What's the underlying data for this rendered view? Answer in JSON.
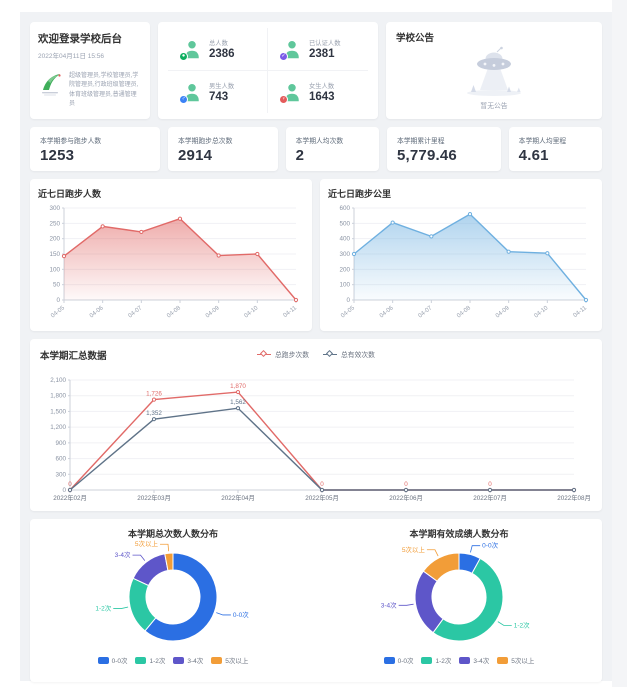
{
  "welcome": {
    "title": "欢迎登录学校后台",
    "datetime": "2022年04月11日 15:56",
    "roles": "超级管理员,学校管理员,学院管理员,行政班级管理员,体育班级管理员,普通管理员"
  },
  "overview": {
    "person_icon_color": "#5fc79b",
    "items": [
      {
        "label": "总人数",
        "value": "2386",
        "badge_color": "#0caf60",
        "badge_glyph": "●"
      },
      {
        "label": "已认证人数",
        "value": "2381",
        "badge_color": "#7b5be8",
        "badge_glyph": "✓"
      },
      {
        "label": "男生人数",
        "value": "743",
        "badge_color": "#3b82f6",
        "badge_glyph": "♂"
      },
      {
        "label": "女生人数",
        "value": "1643",
        "badge_color": "#e45b5b",
        "badge_glyph": "♀"
      }
    ]
  },
  "announcement": {
    "title": "学校公告",
    "empty_text": "暂无公告"
  },
  "stat_cards": [
    {
      "label": "本学期参与跑步人数",
      "value": "1253"
    },
    {
      "label": "本学期跑步总次数",
      "value": "2914"
    },
    {
      "label": "本学期人均次数",
      "value": "2"
    },
    {
      "label": "本学期累计里程",
      "value": "5,779.46"
    },
    {
      "label": "本学期人均里程",
      "value": "4.61"
    }
  ],
  "chart_data": [
    {
      "type": "area",
      "title": "近七日跑步人数",
      "x": [
        "04-05",
        "04-06",
        "04-07",
        "04-08",
        "04-09",
        "04-10",
        "04-11"
      ],
      "values": [
        143,
        240,
        222,
        265,
        145,
        150,
        0
      ],
      "ylim": [
        0,
        300
      ],
      "ytick_step": 50,
      "color": "#e16a68",
      "rotate_x_labels": true,
      "grid": true
    },
    {
      "type": "area",
      "title": "近七日跑步公里",
      "x": [
        "04-05",
        "04-06",
        "04-07",
        "04-08",
        "04-09",
        "04-10",
        "04-11"
      ],
      "values": [
        300,
        505,
        415,
        560,
        315,
        305,
        0
      ],
      "ylim": [
        0,
        600
      ],
      "ytick_step": 100,
      "color": "#6fb0e0",
      "rotate_x_labels": true,
      "grid": true
    },
    {
      "type": "line",
      "title": "本学期汇总数据",
      "x": [
        "2022年02月",
        "2022年03月",
        "2022年04月",
        "2022年05月",
        "2022年06月",
        "2022年07月",
        "2022年08月"
      ],
      "ylim": [
        0,
        2100
      ],
      "ytick_step": 300,
      "legend_position": "top-center",
      "series": [
        {
          "name": "总跑步次数",
          "color": "#e16a68",
          "values": [
            0,
            1726,
            1870,
            0,
            0,
            0,
            0
          ],
          "show_labels": [
            0,
            1,
            2,
            3,
            4,
            5
          ]
        },
        {
          "name": "总有效次数",
          "color": "#5f7388",
          "values": [
            0,
            1352,
            1562,
            0,
            0,
            0,
            0
          ],
          "show_labels": [
            1,
            2
          ]
        }
      ]
    },
    {
      "type": "pie",
      "title": "本学期总次数人数分布",
      "labels": [
        "0-0次",
        "1-2次",
        "3-4次",
        "5次以上"
      ],
      "values": [
        61,
        21,
        15,
        3
      ],
      "colors": [
        "#2b6fe3",
        "#2bc7a4",
        "#5e56c9",
        "#f29d38"
      ],
      "legend_position": "bottom"
    },
    {
      "type": "pie",
      "title": "本学期有效成绩人数分布",
      "labels": [
        "0-0次",
        "1-2次",
        "3-4次",
        "5次以上"
      ],
      "values": [
        8,
        52,
        25,
        15
      ],
      "colors": [
        "#2b6fe3",
        "#2bc7a4",
        "#5e56c9",
        "#f29d38"
      ],
      "legend_position": "bottom"
    }
  ]
}
